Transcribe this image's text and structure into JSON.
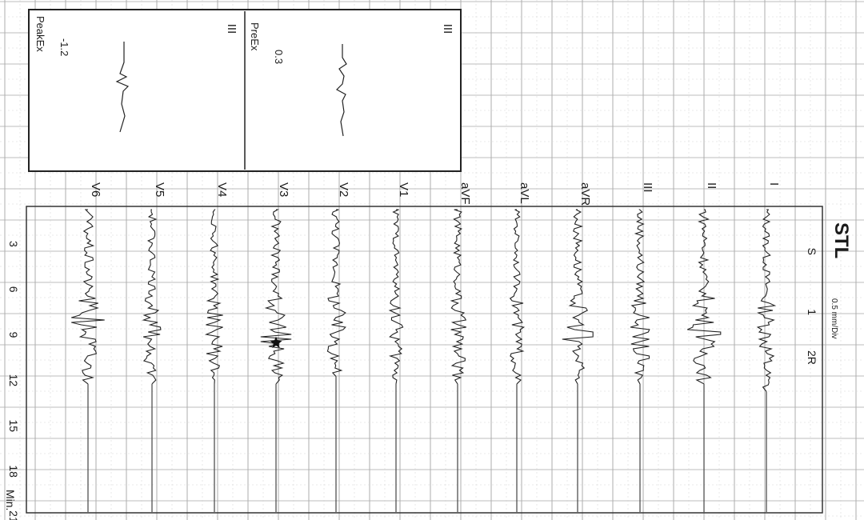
{
  "chart_data": {
    "type": "line",
    "title": "STL",
    "scale_label": "0.5 mm/Div",
    "stage_labels": [
      "S",
      "1",
      "2R"
    ],
    "stage_positions_min": [
      3.5,
      7.5,
      10.5
    ],
    "time_unit_label": "Min.",
    "time_ticks": [
      "3",
      "6",
      "9",
      "12",
      "15",
      "18",
      "21"
    ],
    "time_tick_values": [
      3,
      6,
      9,
      12,
      15,
      18,
      21
    ],
    "time_range_min": [
      0,
      24
    ],
    "grid": true,
    "orientation": "rotated 90 degrees clockwise; time runs top to bottom",
    "lead_labels": [
      "I",
      "II",
      "III",
      "aVR",
      "aVL",
      "aVF",
      "V1",
      "V2",
      "V3",
      "V4",
      "V5",
      "V6"
    ],
    "leads": [
      {
        "name": "I",
        "baseline_end_min": 12.0,
        "amp": 1.0,
        "spike_at": null
      },
      {
        "name": "II",
        "baseline_end_min": 11.5,
        "amp": 1.3,
        "spike_at": 8.3
      },
      {
        "name": "III",
        "baseline_end_min": 11.5,
        "amp": 1.1,
        "spike_at": null
      },
      {
        "name": "aVR",
        "baseline_end_min": 11.5,
        "amp": 1.2,
        "spike_at": 8.5
      },
      {
        "name": "aVL",
        "baseline_end_min": 11.5,
        "amp": 0.8,
        "spike_at": null
      },
      {
        "name": "aVF",
        "baseline_end_min": 11.5,
        "amp": 1.0,
        "spike_at": null
      },
      {
        "name": "V1",
        "baseline_end_min": 11.5,
        "amp": 0.8,
        "spike_at": null
      },
      {
        "name": "V2",
        "baseline_end_min": 11.0,
        "amp": 1.1,
        "spike_at": null
      },
      {
        "name": "V3",
        "baseline_end_min": 11.5,
        "amp": 1.2,
        "spike_at": 8.7
      },
      {
        "name": "V4",
        "baseline_end_min": 11.5,
        "amp": 1.0,
        "spike_at": null
      },
      {
        "name": "V5",
        "baseline_end_min": 11.5,
        "amp": 1.0,
        "spike_at": null
      },
      {
        "name": "V6",
        "baseline_end_min": 11.5,
        "amp": 1.3,
        "spike_at": 7.5
      }
    ],
    "marker": {
      "lead": "V3",
      "at_min": 9.0,
      "symbol": "star"
    },
    "inset": {
      "lead": "III",
      "panels": [
        {
          "label": "PreEx",
          "value": "0.3"
        },
        {
          "label": "PeakEx",
          "value": "-1.2"
        }
      ]
    }
  }
}
